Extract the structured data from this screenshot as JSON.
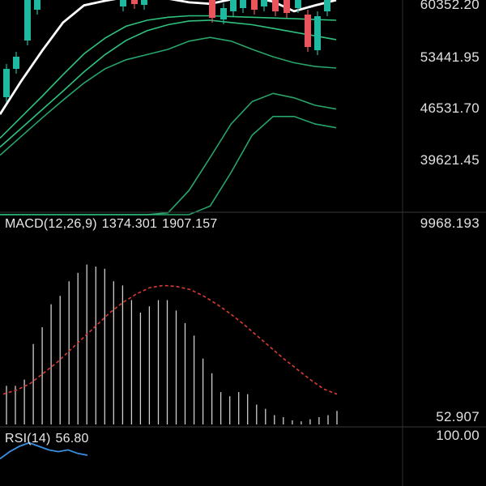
{
  "price_axis_labels": [
    "60352.20",
    "53441.95",
    "46531.70",
    "39621.45"
  ],
  "macd": {
    "title": "MACD(12,26,9)",
    "value_1": "1374.301",
    "value_2": "1907.157",
    "axis_top": "9968.193",
    "axis_bottom": "52.907"
  },
  "rsi": {
    "title": "RSI(14)",
    "value": "56.80",
    "axis_top": "100.00"
  },
  "colors": {
    "background": "#000000",
    "up_candle": "#1fb8a0",
    "down_candle": "#e8555c",
    "ma_white": "#ffffff",
    "band_green": "#2ec27e",
    "macd_signal": "#d93b36",
    "macd_histogram": "#cfcfcf",
    "rsi_line": "#3b8fe0"
  },
  "chart_data": [
    {
      "type": "line",
      "panel": "price",
      "y_ticks": [
        60352.2,
        53441.95,
        46531.7,
        39621.45
      ],
      "series": [
        {
          "values": [
            45800,
            50200,
            54300,
            58100,
            60400,
            61000,
            61500,
            61700,
            61300,
            60800,
            60600,
            61200,
            61500,
            60900,
            59600,
            60400,
            61100
          ]
        },
        {
          "values": [
            42600,
            45400,
            48200,
            51100,
            53900,
            56000,
            57600,
            58400,
            58800,
            59000,
            59000,
            58900,
            58800,
            58700,
            58600,
            58500,
            58400
          ]
        },
        {
          "values": [
            41400,
            43900,
            46400,
            48900,
            51500,
            53800,
            55700,
            57000,
            57800,
            58300,
            58400,
            58100,
            57800,
            57300,
            56800,
            56300,
            55800
          ]
        },
        {
          "values": [
            40300,
            42800,
            45300,
            47700,
            50000,
            51900,
            53100,
            53800,
            54500,
            55600,
            56100,
            55600,
            54500,
            53500,
            52700,
            52200,
            52000
          ]
        },
        {
          "values": [
            32100,
            32100,
            32100,
            32100,
            32100,
            32100,
            32100,
            32100,
            32600,
            35600,
            40000,
            44500,
            47500,
            48600,
            48000,
            47000,
            46500
          ]
        },
        {
          "values": [
            32100,
            32100,
            32100,
            32100,
            32100,
            32100,
            32100,
            32100,
            32100,
            32100,
            33500,
            38000,
            43000,
            45500,
            45500,
            44500,
            44000
          ]
        }
      ]
    },
    {
      "type": "bar",
      "panel": "macd",
      "ylim": [
        52.907,
        9968.193
      ],
      "series": [
        {
          "values": [
            1900,
            1900,
            2200,
            3900,
            4700,
            5800,
            6200,
            6900,
            7300,
            7700,
            7600,
            7500,
            6900,
            6700,
            6000,
            5400,
            5700,
            6000,
            6000,
            5500,
            4900,
            4300,
            3200,
            2500,
            1600,
            1400,
            1600,
            1500,
            1000,
            800,
            500,
            400,
            250,
            200,
            300,
            400,
            500,
            700
          ]
        },
        {
          "values": [
            1500,
            1700,
            2000,
            2500,
            3000,
            3600,
            4200,
            4800,
            5400,
            5900,
            6300,
            6600,
            6700,
            6650,
            6500,
            6200,
            5800,
            5350,
            4850,
            4300,
            3750,
            3200,
            2700,
            2200,
            1750,
            1500
          ]
        }
      ]
    },
    {
      "type": "line",
      "panel": "rsi",
      "y_ticks": [
        100.0
      ],
      "series": [
        {
          "values": [
            88,
            92,
            95,
            97,
            95,
            93,
            92,
            93,
            91,
            90
          ]
        }
      ]
    }
  ]
}
